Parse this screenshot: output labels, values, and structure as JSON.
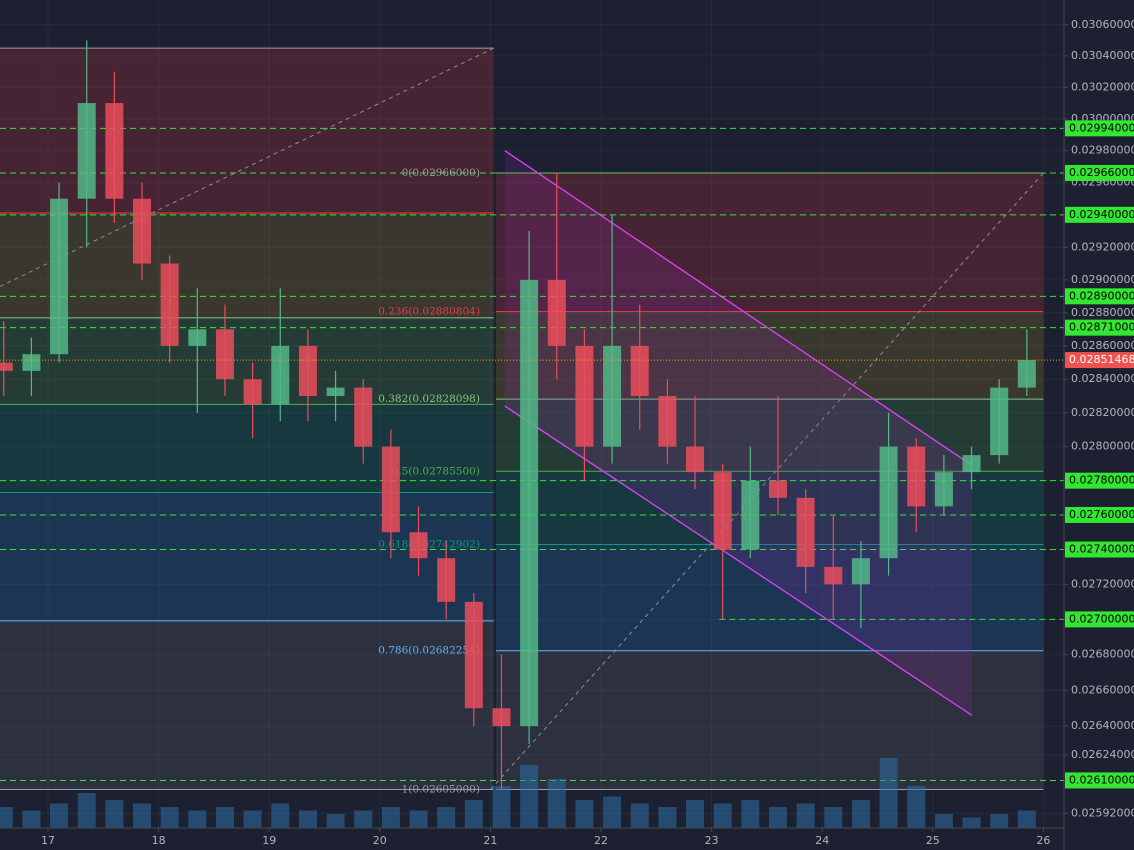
{
  "chart_data": {
    "type": "candlestick",
    "log_scale": true,
    "grid": true,
    "background": "#1c2030",
    "xlim": [
      16.566,
      26.186
    ],
    "xticks": [
      17,
      18,
      19,
      20,
      21,
      22,
      23,
      24,
      25,
      26
    ],
    "ylim": [
      0.02584,
      0.03076
    ],
    "yticks": [
      {
        "value": 0.0306,
        "label": "0.03060000"
      },
      {
        "value": 0.0304,
        "label": "0.03040000"
      },
      {
        "value": 0.0302,
        "label": "0.03020000"
      },
      {
        "value": 0.03,
        "label": "0.03000000"
      },
      {
        "value": 0.0298,
        "label": "0.02980000"
      },
      {
        "value": 0.0296,
        "label": "0.02960000"
      },
      {
        "value": 0.0294,
        "label": "0.02940000"
      },
      {
        "value": 0.0292,
        "label": "0.02920000"
      },
      {
        "value": 0.029,
        "label": "0.02900000"
      },
      {
        "value": 0.0288,
        "label": "0.02880000"
      },
      {
        "value": 0.0286,
        "label": "0.02860000"
      },
      {
        "value": 0.0284,
        "label": "0.02840000"
      },
      {
        "value": 0.0282,
        "label": "0.02820000"
      },
      {
        "value": 0.028,
        "label": "0.02800000"
      },
      {
        "value": 0.0278,
        "label": "0.02780000"
      },
      {
        "value": 0.0276,
        "label": "0.02760000"
      },
      {
        "value": 0.0274,
        "label": "0.02740000"
      },
      {
        "value": 0.0272,
        "label": "0.02720000"
      },
      {
        "value": 0.027,
        "label": "0.02700000"
      },
      {
        "value": 0.0268,
        "label": "0.02680000"
      },
      {
        "value": 0.0266,
        "label": "0.02660000"
      },
      {
        "value": 0.0264,
        "label": "0.02640000"
      },
      {
        "value": 0.02624,
        "label": "0.02624000"
      },
      {
        "value": 0.02592,
        "label": "0.02592000"
      }
    ],
    "x": [
      16.6,
      16.85,
      17.1,
      17.35,
      17.6,
      17.85,
      18.1,
      18.35,
      18.6,
      18.85,
      19.1,
      19.35,
      19.6,
      19.85,
      20.1,
      20.35,
      20.6,
      20.85,
      21.1,
      21.35,
      21.6,
      21.85,
      22.1,
      22.35,
      22.6,
      22.85,
      23.1,
      23.35,
      23.6,
      23.85,
      24.1,
      24.35,
      24.6,
      24.85,
      25.1,
      25.35,
      25.6,
      25.85
    ],
    "open": [
      0.0285,
      0.02845,
      0.02855,
      0.0295,
      0.0301,
      0.0295,
      0.0291,
      0.0286,
      0.0287,
      0.0284,
      0.02825,
      0.0286,
      0.0283,
      0.02835,
      0.028,
      0.0275,
      0.02735,
      0.0271,
      0.0265,
      0.0264,
      0.029,
      0.0286,
      0.028,
      0.0286,
      0.0283,
      0.028,
      0.02785,
      0.0274,
      0.0278,
      0.0277,
      0.0273,
      0.0272,
      0.02735,
      0.028,
      0.02765,
      0.02785,
      0.02795,
      0.02835
    ],
    "high": [
      0.02875,
      0.02865,
      0.0296,
      0.0305,
      0.0303,
      0.0296,
      0.02915,
      0.02895,
      0.02885,
      0.0285,
      0.02895,
      0.0287,
      0.02845,
      0.0284,
      0.0281,
      0.02765,
      0.02745,
      0.02715,
      0.0268,
      0.0293,
      0.02966,
      0.0287,
      0.0294,
      0.02885,
      0.0284,
      0.0283,
      0.0279,
      0.028,
      0.0283,
      0.02775,
      0.0276,
      0.02745,
      0.0282,
      0.02805,
      0.02795,
      0.028,
      0.0284,
      0.0287
    ],
    "low": [
      0.0283,
      0.0283,
      0.0285,
      0.0292,
      0.02935,
      0.029,
      0.0285,
      0.0282,
      0.0283,
      0.02805,
      0.02815,
      0.02815,
      0.02815,
      0.0279,
      0.02735,
      0.02725,
      0.027,
      0.0264,
      0.02605,
      0.0263,
      0.0284,
      0.0278,
      0.0279,
      0.0281,
      0.0279,
      0.02775,
      0.027,
      0.02735,
      0.0276,
      0.02715,
      0.027,
      0.02695,
      0.02725,
      0.0275,
      0.0276,
      0.02775,
      0.0279,
      0.0283
    ],
    "close": [
      0.02845,
      0.02855,
      0.0295,
      0.0301,
      0.0295,
      0.0291,
      0.0286,
      0.0287,
      0.0284,
      0.02825,
      0.0286,
      0.0283,
      0.02835,
      0.028,
      0.0275,
      0.02735,
      0.0271,
      0.0265,
      0.0264,
      0.029,
      0.0286,
      0.028,
      0.0286,
      0.0283,
      0.028,
      0.02785,
      0.0274,
      0.0278,
      0.0277,
      0.0273,
      0.0272,
      0.02735,
      0.028,
      0.02765,
      0.02785,
      0.02795,
      0.02835,
      0.02851468
    ],
    "volume": [
      30,
      25,
      35,
      50,
      40,
      35,
      30,
      25,
      30,
      25,
      35,
      25,
      20,
      25,
      30,
      25,
      30,
      40,
      60,
      90,
      70,
      40,
      45,
      35,
      30,
      40,
      35,
      40,
      30,
      35,
      30,
      40,
      100,
      60,
      20,
      15,
      20,
      25
    ],
    "up_color": "#53b987",
    "down_color": "#eb4d5c",
    "volume_color": "#2f6fa8",
    "current_price": {
      "value": 0.02851468,
      "label": "0.02851468"
    },
    "current_color": "#ef5350",
    "level_color": "#32e632",
    "levels": [
      {
        "value": 0.02994,
        "label": "0.02994000"
      },
      {
        "value": 0.02966,
        "label": "0.02966000"
      },
      {
        "value": 0.0294,
        "label": "0.02940000"
      },
      {
        "value": 0.0289,
        "label": "0.02890000"
      },
      {
        "value": 0.02871,
        "label": "0.02871000"
      },
      {
        "value": 0.0278,
        "label": "0.02780000"
      },
      {
        "value": 0.0276,
        "label": "0.02760000"
      },
      {
        "value": 0.0274,
        "label": "0.02740000"
      },
      {
        "value": 0.027,
        "label": "0.02700000",
        "from": 23.07
      },
      {
        "value": 0.0261,
        "label": "0.02610000"
      }
    ],
    "fib_colors": [
      "#9aa0aa",
      "#f23645",
      "#81c784",
      "#4caf50",
      "#089981",
      "#64b5f6",
      "#9aa0aa"
    ],
    "fib_bands": [
      "rgba(242,54,69,0.2)",
      "rgba(180,150,40,0.2)",
      "rgba(76,175,80,0.2)",
      "rgba(8,153,129,0.2)",
      "rgba(33,150,243,0.18)",
      "rgba(120,123,134,0.18)"
    ],
    "fibs": [
      {
        "x": [
          16.566,
          21.03
        ],
        "high": 0.03045,
        "low": 0.02605,
        "trend": [
          [
            16.566,
            0.02896
          ],
          [
            21.03,
            0.03045
          ]
        ],
        "levels": [
          0,
          0.236,
          0.382,
          0.5,
          0.618,
          0.786,
          1
        ]
      },
      {
        "x": [
          21.05,
          26.0
        ],
        "high": 0.02966,
        "low": 0.02605,
        "trend": [
          [
            21.0,
            0.02605
          ],
          [
            26.0,
            0.02966
          ]
        ],
        "levels": [
          {
            "value": 0,
            "label": "0(0.02966000)"
          },
          {
            "value": 0.236,
            "label": "0.236(0.02880804)"
          },
          {
            "value": 0.382,
            "label": "0.382(0.02828098)"
          },
          {
            "value": 0.5,
            "label": "0.5(0.02785500)"
          },
          {
            "value": 0.618,
            "label": "0.618(0.02742902)"
          },
          {
            "value": 0.786,
            "label": "0.786(0.02682254)"
          },
          {
            "value": 1,
            "label": "1(0.02605000)"
          }
        ]
      }
    ],
    "channel": {
      "color": "#e040fb",
      "upper": [
        [
          21.13,
          0.0298
        ],
        [
          25.354,
          0.02789
        ]
      ],
      "lower": [
        [
          21.13,
          0.02824
        ],
        [
          25.354,
          0.02646
        ]
      ]
    }
  }
}
